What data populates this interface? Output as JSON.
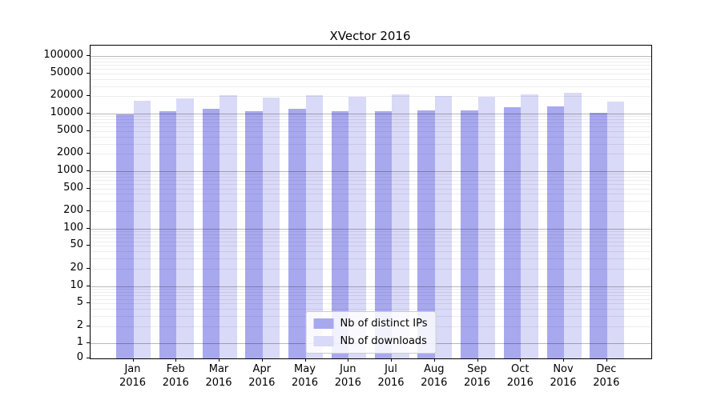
{
  "chart_data": {
    "type": "bar",
    "title": "XVector 2016",
    "yscale": "symlog",
    "grid": "horizontal",
    "legend_position": "lower center",
    "categories": [
      "Jan 2016",
      "Feb 2016",
      "Mar 2016",
      "Apr 2016",
      "May 2016",
      "Jun 2016",
      "Jul 2016",
      "Aug 2016",
      "Sep 2016",
      "Oct 2016",
      "Nov 2016",
      "Dec 2016"
    ],
    "series": [
      {
        "name": "Nb of distinct IPs",
        "color": "#a8a8ef",
        "values": [
          9800,
          11100,
          12200,
          11100,
          12100,
          10900,
          11000,
          11300,
          11500,
          12900,
          13300,
          10400
        ]
      },
      {
        "name": "Nb of downloads",
        "color": "#d9d9f8",
        "values": [
          16500,
          18300,
          20600,
          19100,
          20800,
          19400,
          21800,
          20300,
          19400,
          21700,
          23200,
          16400
        ]
      }
    ],
    "yticks": [
      100000,
      50000,
      20000,
      10000,
      5000,
      2000,
      1000,
      500,
      200,
      100,
      50,
      20,
      10,
      5,
      2,
      1,
      0
    ],
    "ylim": [
      0,
      150000
    ]
  }
}
